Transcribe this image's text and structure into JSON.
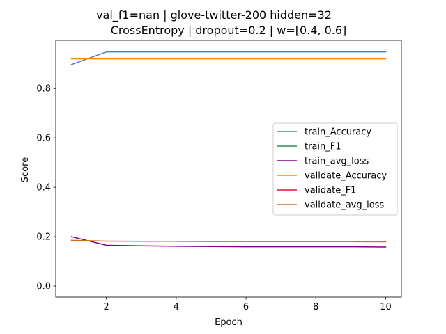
{
  "chart_data": {
    "type": "line",
    "title_lines": [
      "val_f1=nan | glove-twitter-200  hidden=32",
      "CrossEntropy | dropout=0.2 | w=[0.4, 0.6]"
    ],
    "xlabel": "Epoch",
    "ylabel": "Score",
    "xlim": [
      0.55,
      10.45
    ],
    "ylim": [
      -0.045,
      0.995
    ],
    "xticks": [
      2,
      4,
      6,
      8,
      10
    ],
    "yticks": [
      0.0,
      0.2,
      0.4,
      0.6,
      0.8
    ],
    "ytick_labels": [
      "0.0",
      "0.2",
      "0.4",
      "0.6",
      "0.8"
    ],
    "grid": false,
    "legend_placement": "center-right",
    "x": [
      1,
      2,
      3,
      4,
      5,
      6,
      7,
      8,
      9,
      10
    ],
    "series": [
      {
        "name": "train_Accuracy",
        "color": "#4682b4",
        "values": [
          0.897,
          0.948,
          0.948,
          0.948,
          0.948,
          0.948,
          0.948,
          0.948,
          0.948,
          0.948
        ]
      },
      {
        "name": "train_F1",
        "color": "#2e8b57",
        "values": [
          null,
          null,
          null,
          null,
          null,
          null,
          null,
          null,
          null,
          null
        ]
      },
      {
        "name": "train_avg_loss",
        "color": "#800080",
        "values": [
          0.2,
          0.165,
          0.163,
          0.161,
          0.16,
          0.159,
          0.159,
          0.159,
          0.159,
          0.158
        ]
      },
      {
        "name": "validate_Accuracy",
        "color": "#ff8c00",
        "values": [
          0.92,
          0.92,
          0.92,
          0.92,
          0.92,
          0.92,
          0.92,
          0.92,
          0.92,
          0.92
        ]
      },
      {
        "name": "validate_F1",
        "color": "#dc143c",
        "values": [
          null,
          null,
          null,
          null,
          null,
          null,
          null,
          null,
          null,
          null
        ]
      },
      {
        "name": "validate_avg_loss",
        "color": "#d2691e",
        "values": [
          0.185,
          0.182,
          0.181,
          0.181,
          0.18,
          0.18,
          0.18,
          0.18,
          0.18,
          0.179
        ]
      }
    ]
  }
}
